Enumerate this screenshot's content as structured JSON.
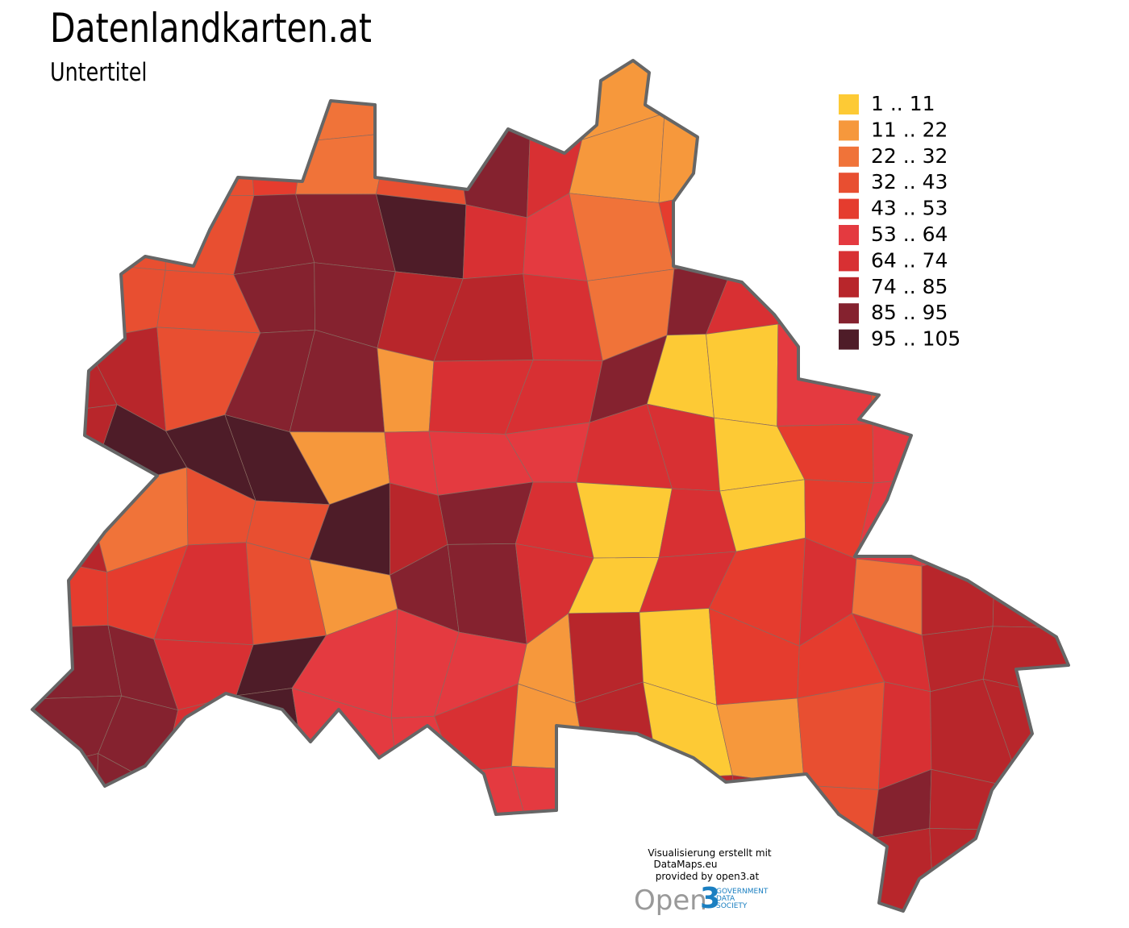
{
  "title": "Datenlandkarten.at",
  "subtitle": "Untertitel",
  "legend": [
    {
      "label": "1 .. 11",
      "color": "#fdca35"
    },
    {
      "label": "11 .. 22",
      "color": "#f6983c"
    },
    {
      "label": "22 .. 32",
      "color": "#f07339"
    },
    {
      "label": "32 .. 43",
      "color": "#e84f31"
    },
    {
      "label": "43 .. 53",
      "color": "#e53c2e"
    },
    {
      "label": "53 .. 64",
      "color": "#e43a40"
    },
    {
      "label": "64 .. 74",
      "color": "#d83033"
    },
    {
      "label": "74 .. 85",
      "color": "#b8262b"
    },
    {
      "label": "85 .. 95",
      "color": "#85222f"
    },
    {
      "label": "95 .. 105",
      "color": "#4e1c28"
    }
  ],
  "credits": [
    "Visualisierung erstellt mit",
    "DataMaps.eu",
    "provided by open3.at"
  ],
  "logo": {
    "word": "Open",
    "number": "3",
    "lines": [
      "GOVERNMENT",
      "DATA",
      "SOCIETY"
    ]
  }
}
